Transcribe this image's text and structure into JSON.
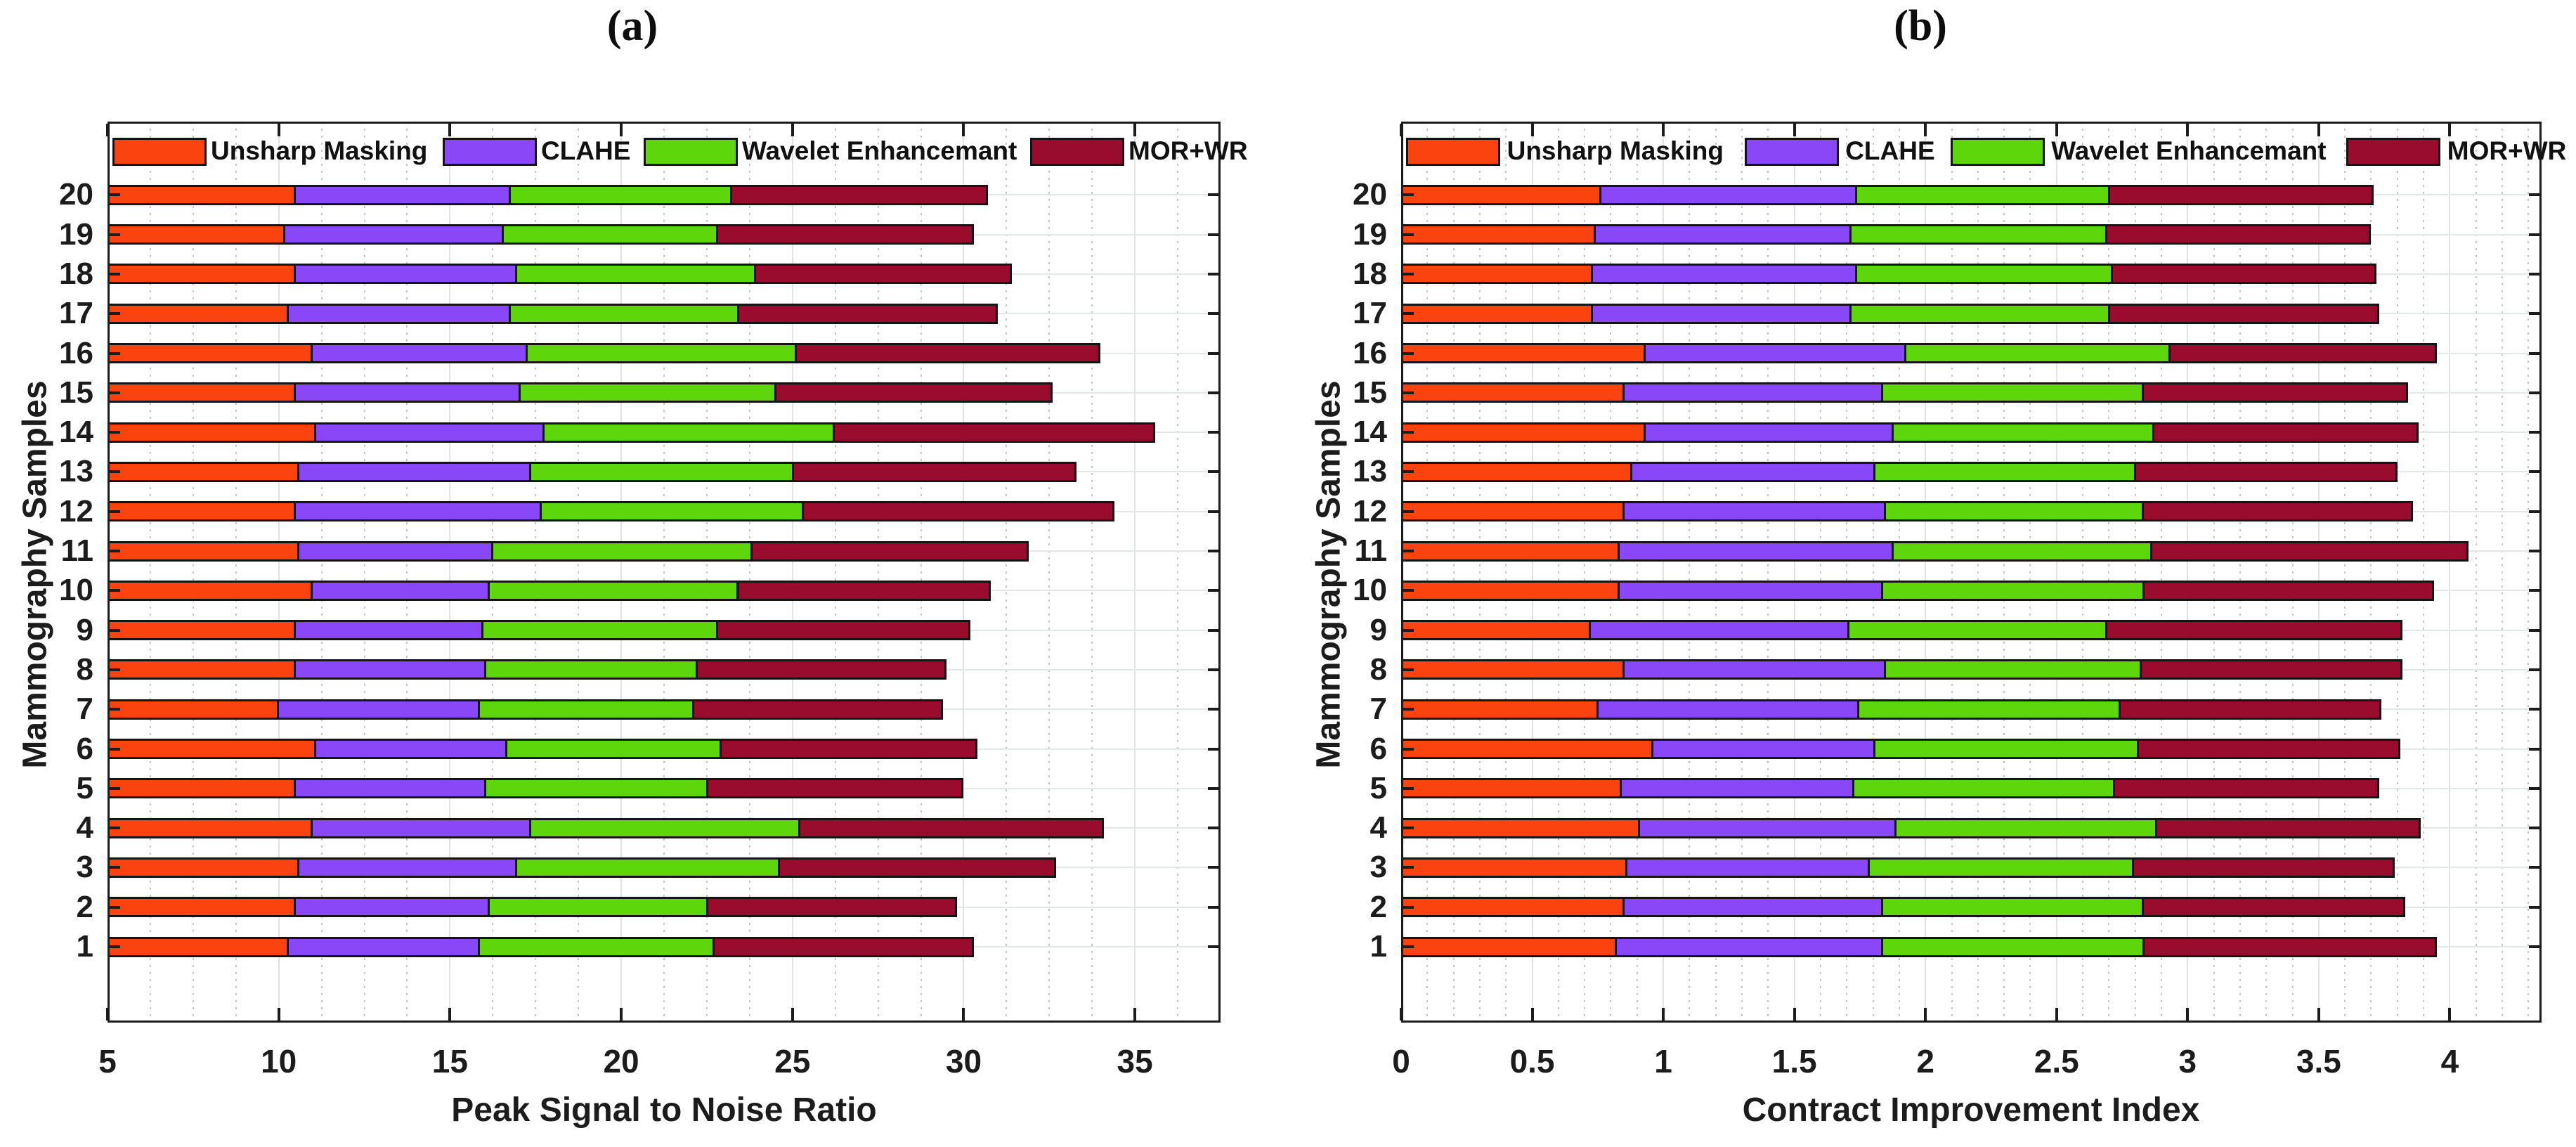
{
  "figure": {
    "panel_a_title": "(a)",
    "panel_b_title": "(b)"
  },
  "legend": {
    "items": [
      {
        "label": "Unsharp Masking",
        "color": "#FB430F"
      },
      {
        "label": "CLAHE",
        "color": "#8A47F7"
      },
      {
        "label": "Wavelet Enhancemant",
        "color": "#5ED60C"
      },
      {
        "label": "MOR+WR",
        "color": "#9A0C2E"
      }
    ]
  },
  "chart_data": [
    {
      "id": "a",
      "type": "bar",
      "orientation": "horizontal-stacked",
      "title": "(a)",
      "xlabel": "Peak Signal to Noise Ratio",
      "ylabel": "Mammography Samples",
      "xlim": [
        5,
        37.5
      ],
      "xticks": [
        5,
        10,
        15,
        20,
        25,
        30,
        35
      ],
      "xtick_labels": [
        "5",
        "10",
        "15",
        "20",
        "25",
        "30",
        "35"
      ],
      "minor_step": 1.25,
      "grid": "major-and-minor",
      "legend_position": "inside-top",
      "series_names": [
        "Unsharp Masking",
        "CLAHE",
        "Wavelet Enhancemant",
        "MOR+WR"
      ],
      "note": "ends are cumulative stacked values per sample; bars drawn from xlim[0]",
      "rows": [
        {
          "sample": 20,
          "ends": [
            10.4,
            16.7,
            23.2,
            30.7
          ]
        },
        {
          "sample": 19,
          "ends": [
            10.1,
            16.5,
            22.8,
            30.3
          ]
        },
        {
          "sample": 18,
          "ends": [
            10.4,
            16.9,
            23.9,
            31.4
          ]
        },
        {
          "sample": 17,
          "ends": [
            10.2,
            16.7,
            23.4,
            31.0
          ]
        },
        {
          "sample": 16,
          "ends": [
            10.9,
            17.2,
            25.1,
            34.0
          ]
        },
        {
          "sample": 15,
          "ends": [
            10.4,
            17.0,
            24.5,
            32.6
          ]
        },
        {
          "sample": 14,
          "ends": [
            11.0,
            17.7,
            26.2,
            35.6
          ]
        },
        {
          "sample": 13,
          "ends": [
            10.5,
            17.3,
            25.0,
            33.3
          ]
        },
        {
          "sample": 12,
          "ends": [
            10.4,
            17.6,
            25.3,
            34.4
          ]
        },
        {
          "sample": 11,
          "ends": [
            10.5,
            16.2,
            23.8,
            31.9
          ]
        },
        {
          "sample": 10,
          "ends": [
            10.9,
            16.1,
            23.4,
            30.8
          ]
        },
        {
          "sample": 9,
          "ends": [
            10.4,
            15.9,
            22.8,
            30.2
          ]
        },
        {
          "sample": 8,
          "ends": [
            10.4,
            16.0,
            22.2,
            29.5
          ]
        },
        {
          "sample": 7,
          "ends": [
            9.9,
            15.8,
            22.1,
            29.4
          ]
        },
        {
          "sample": 6,
          "ends": [
            11.0,
            16.6,
            22.9,
            30.4
          ]
        },
        {
          "sample": 5,
          "ends": [
            10.4,
            16.0,
            22.5,
            30.0
          ]
        },
        {
          "sample": 4,
          "ends": [
            10.9,
            17.3,
            25.2,
            34.1
          ]
        },
        {
          "sample": 3,
          "ends": [
            10.5,
            16.9,
            24.6,
            32.7
          ]
        },
        {
          "sample": 2,
          "ends": [
            10.4,
            16.1,
            22.5,
            29.8
          ]
        },
        {
          "sample": 1,
          "ends": [
            10.2,
            15.8,
            22.7,
            30.3
          ]
        }
      ]
    },
    {
      "id": "b",
      "type": "bar",
      "orientation": "horizontal-stacked",
      "title": "(b)",
      "xlabel": "Contract Improvement Index",
      "ylabel": "Mammography Samples",
      "xlim": [
        0,
        4.35
      ],
      "xticks": [
        0,
        0.5,
        1,
        1.5,
        2,
        2.5,
        3,
        3.5,
        4
      ],
      "xtick_labels": [
        "0",
        "0.5",
        "1",
        "1.5",
        "2",
        "2.5",
        "3",
        "3.5",
        "4"
      ],
      "minor_step": 0.1,
      "grid": "major-and-minor",
      "legend_position": "inside-top",
      "series_names": [
        "Unsharp Masking",
        "CLAHE",
        "Wavelet Enhancemant",
        "MOR+WR"
      ],
      "note": "ends are cumulative stacked values per sample; bars drawn from xlim[0]",
      "rows": [
        {
          "sample": 20,
          "ends": [
            0.75,
            1.73,
            2.7,
            3.71
          ]
        },
        {
          "sample": 19,
          "ends": [
            0.73,
            1.71,
            2.69,
            3.7
          ]
        },
        {
          "sample": 18,
          "ends": [
            0.72,
            1.73,
            2.71,
            3.72
          ]
        },
        {
          "sample": 17,
          "ends": [
            0.72,
            1.71,
            2.7,
            3.73
          ]
        },
        {
          "sample": 16,
          "ends": [
            0.92,
            1.92,
            2.93,
            3.95
          ]
        },
        {
          "sample": 15,
          "ends": [
            0.84,
            1.83,
            2.83,
            3.84
          ]
        },
        {
          "sample": 14,
          "ends": [
            0.92,
            1.87,
            2.87,
            3.88
          ]
        },
        {
          "sample": 13,
          "ends": [
            0.87,
            1.8,
            2.8,
            3.8
          ]
        },
        {
          "sample": 12,
          "ends": [
            0.84,
            1.84,
            2.83,
            3.86
          ]
        },
        {
          "sample": 11,
          "ends": [
            0.82,
            1.87,
            2.86,
            4.07
          ]
        },
        {
          "sample": 10,
          "ends": [
            0.82,
            1.83,
            2.83,
            3.94
          ]
        },
        {
          "sample": 9,
          "ends": [
            0.71,
            1.7,
            2.69,
            3.82
          ]
        },
        {
          "sample": 8,
          "ends": [
            0.84,
            1.84,
            2.82,
            3.82
          ]
        },
        {
          "sample": 7,
          "ends": [
            0.74,
            1.74,
            2.74,
            3.74
          ]
        },
        {
          "sample": 6,
          "ends": [
            0.95,
            1.8,
            2.81,
            3.81
          ]
        },
        {
          "sample": 5,
          "ends": [
            0.83,
            1.72,
            2.72,
            3.73
          ]
        },
        {
          "sample": 4,
          "ends": [
            0.9,
            1.88,
            2.88,
            3.89
          ]
        },
        {
          "sample": 3,
          "ends": [
            0.85,
            1.78,
            2.79,
            3.79
          ]
        },
        {
          "sample": 2,
          "ends": [
            0.84,
            1.83,
            2.83,
            3.83
          ]
        },
        {
          "sample": 1,
          "ends": [
            0.81,
            1.83,
            2.83,
            3.95
          ]
        }
      ]
    }
  ]
}
